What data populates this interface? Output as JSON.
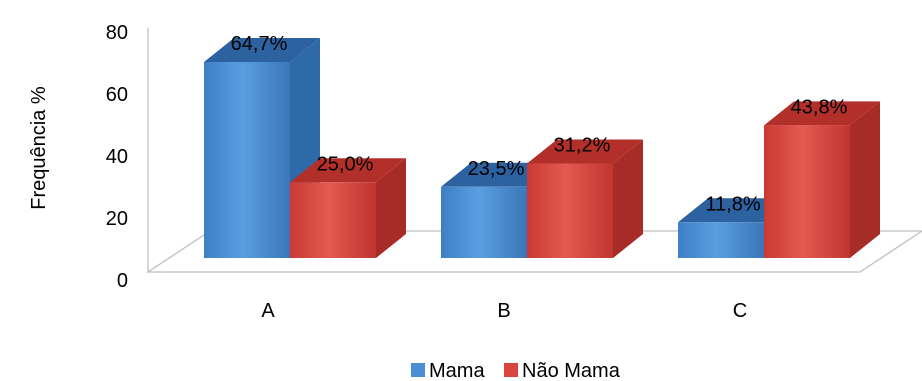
{
  "chart_data": {
    "type": "bar",
    "title": "",
    "xlabel": "",
    "ylabel": "Frequência %",
    "categories": [
      "A",
      "B",
      "C"
    ],
    "series": [
      {
        "name": "Mama",
        "values": [
          64.7,
          23.5,
          11.8
        ],
        "labels": [
          "64,7%",
          "23,5%",
          "11,8%"
        ],
        "color": "#4a8fd6"
      },
      {
        "name": "Não Mama",
        "values": [
          25.0,
          31.2,
          43.8
        ],
        "labels": [
          "25,0%",
          "31,2%",
          "43,8%"
        ],
        "color": "#d9463f"
      }
    ],
    "ylim": [
      0,
      80
    ],
    "yticks": [
      "0",
      "20",
      "40",
      "60",
      "80"
    ],
    "grid": false,
    "legend": "bottom",
    "style": "3d-clustered-column"
  }
}
